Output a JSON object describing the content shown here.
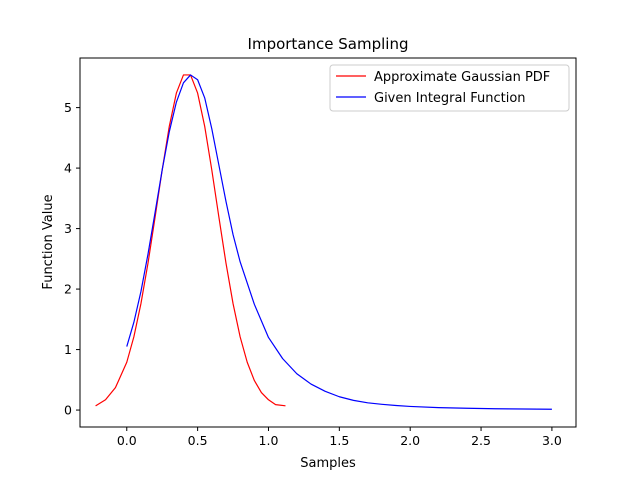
{
  "chart_data": {
    "type": "line",
    "title": "Importance Sampling",
    "xlabel": "Samples",
    "ylabel": "Function Value",
    "xlim": [
      -0.33,
      3.17
    ],
    "ylim": [
      -0.28,
      5.82
    ],
    "xticks": [
      0.0,
      0.5,
      1.0,
      1.5,
      2.0,
      2.5,
      3.0
    ],
    "xtick_labels": [
      "0.0",
      "0.5",
      "1.0",
      "1.5",
      "2.0",
      "2.5",
      "3.0"
    ],
    "yticks": [
      0,
      1,
      2,
      3,
      4,
      5
    ],
    "ytick_labels": [
      "0",
      "1",
      "2",
      "3",
      "4",
      "5"
    ],
    "grid": false,
    "legend_position": "top-right",
    "series": [
      {
        "name": "Approximate Gaussian PDF",
        "color": "#ff0000",
        "x": [
          -0.22,
          -0.15,
          -0.08,
          0.0,
          0.05,
          0.1,
          0.15,
          0.2,
          0.25,
          0.3,
          0.35,
          0.4,
          0.45,
          0.5,
          0.55,
          0.6,
          0.65,
          0.7,
          0.75,
          0.8,
          0.85,
          0.9,
          0.95,
          1.0,
          1.05,
          1.12
        ],
        "y": [
          0.07,
          0.17,
          0.37,
          0.79,
          1.21,
          1.76,
          2.43,
          3.19,
          3.97,
          4.69,
          5.24,
          5.54,
          5.54,
          5.24,
          4.69,
          3.97,
          3.19,
          2.43,
          1.76,
          1.21,
          0.79,
          0.49,
          0.29,
          0.17,
          0.09,
          0.07
        ]
      },
      {
        "name": "Given Integral Function",
        "color": "#0000ff",
        "x": [
          0.0,
          0.05,
          0.1,
          0.15,
          0.2,
          0.25,
          0.3,
          0.35,
          0.4,
          0.45,
          0.5,
          0.55,
          0.6,
          0.65,
          0.7,
          0.75,
          0.8,
          0.9,
          1.0,
          1.1,
          1.2,
          1.3,
          1.4,
          1.5,
          1.6,
          1.7,
          1.8,
          1.9,
          2.0,
          2.2,
          2.4,
          2.6,
          2.8,
          3.0
        ],
        "y": [
          1.05,
          1.45,
          1.96,
          2.58,
          3.27,
          3.97,
          4.6,
          5.09,
          5.41,
          5.54,
          5.46,
          5.16,
          4.65,
          4.05,
          3.45,
          2.9,
          2.45,
          1.75,
          1.2,
          0.85,
          0.6,
          0.43,
          0.31,
          0.22,
          0.16,
          0.12,
          0.095,
          0.075,
          0.06,
          0.04,
          0.03,
          0.022,
          0.017,
          0.013
        ]
      }
    ]
  }
}
